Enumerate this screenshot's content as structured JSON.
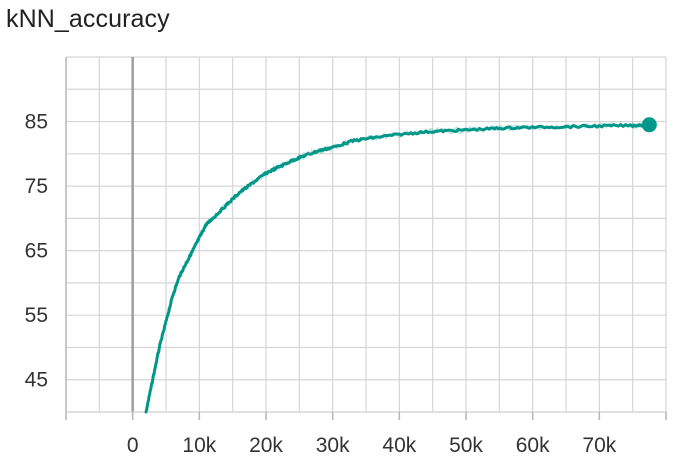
{
  "chart_data": {
    "type": "line",
    "title": "kNN_accuracy",
    "xlabel": "",
    "ylabel": "",
    "x_ticks": [
      "0",
      "10k",
      "20k",
      "30k",
      "40k",
      "50k",
      "60k",
      "70k"
    ],
    "y_ticks": [
      "45",
      "55",
      "65",
      "75",
      "85"
    ],
    "xlim": [
      -10000,
      80000
    ],
    "ylim": [
      40,
      95
    ],
    "grid": true,
    "legend": "none",
    "series": [
      {
        "color": "#009688",
        "x": [
          2000,
          3000,
          4000,
          5000,
          6000,
          7000,
          8000,
          9000,
          10000,
          11000,
          12000,
          14000,
          16000,
          18000,
          20000,
          22000,
          24000,
          26000,
          28000,
          30000,
          33000,
          36000,
          40000,
          44000,
          48000,
          52000,
          56000,
          60000,
          65000,
          70000,
          75000,
          77500
        ],
        "y": [
          40,
          45,
          50,
          54,
          58,
          61,
          63,
          65,
          67,
          69,
          70,
          72,
          74,
          75.5,
          77,
          78,
          79,
          79.8,
          80.5,
          81,
          82,
          82.5,
          83,
          83.4,
          83.6,
          83.8,
          84,
          84.1,
          84.2,
          84.3,
          84.4,
          84.5
        ]
      }
    ]
  }
}
